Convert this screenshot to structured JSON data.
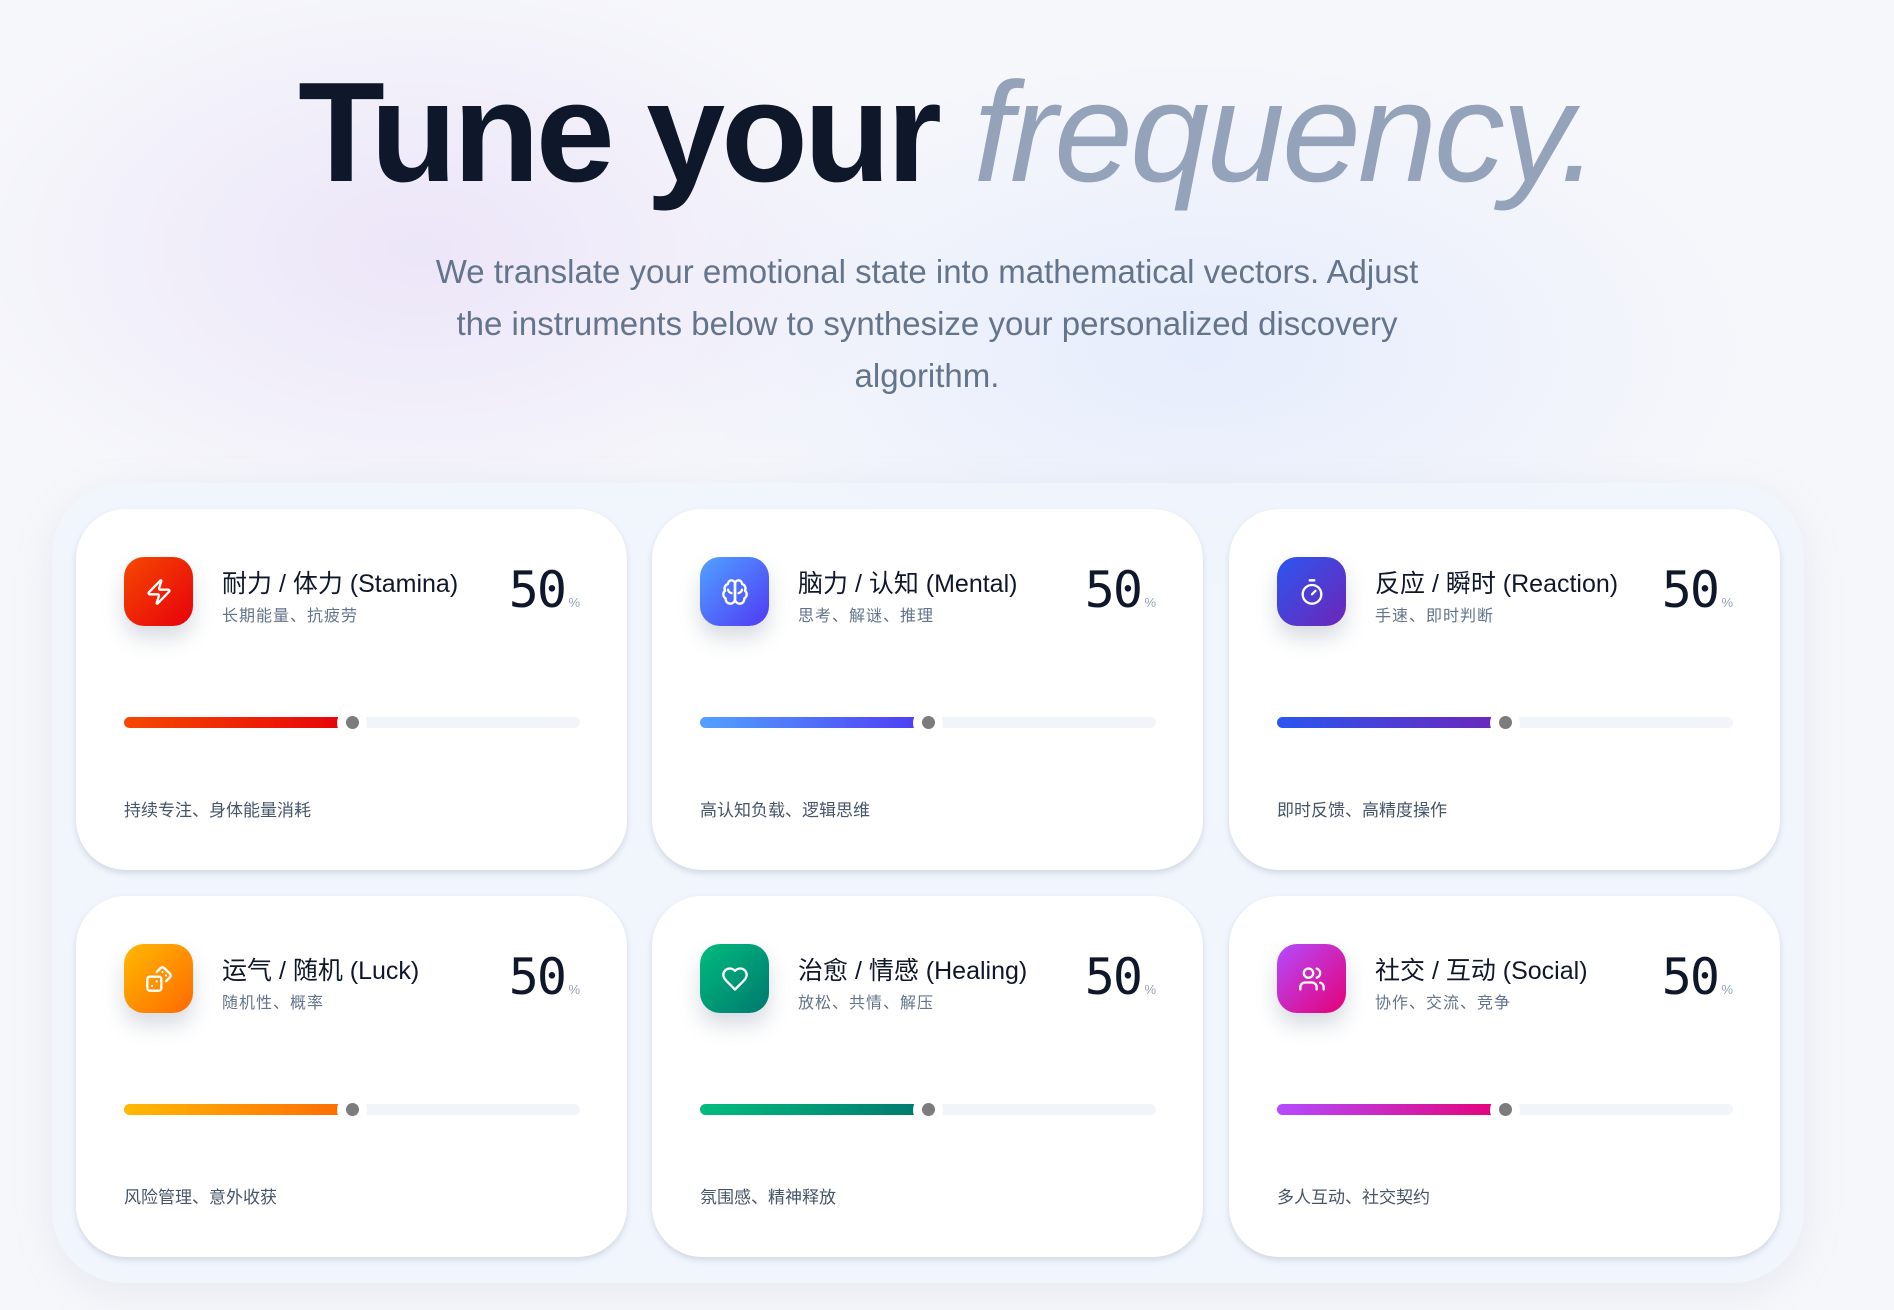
{
  "hero": {
    "title_main": "Tune your",
    "title_accent": "frequency.",
    "subtitle": "We translate your emotional state into mathematical vectors. Adjust the instruments below to synthesize your personalized discovery algorithm."
  },
  "cards": [
    {
      "title": "耐力 / 体力 (Stamina)",
      "subtitle": "长期能量、抗疲劳",
      "value": "50",
      "unit": "%",
      "level": 50,
      "description": "持续专注、身体能量消耗",
      "icon": "zap-icon",
      "colors": [
        "#f54900",
        "#e7000b"
      ]
    },
    {
      "title": "脑力 / 认知 (Mental)",
      "subtitle": "思考、解谜、推理",
      "value": "50",
      "unit": "%",
      "level": 50,
      "description": "高认知负载、逻辑思维",
      "icon": "brain-icon",
      "colors": [
        "#51a2ff",
        "#4f39f6"
      ]
    },
    {
      "title": "反应 / 瞬时 (Reaction)",
      "subtitle": "手速、即时判断",
      "value": "50",
      "unit": "%",
      "level": 50,
      "description": "即时反馈、高精度操作",
      "icon": "timer-icon",
      "colors": [
        "#2b56f0",
        "#6e25b8"
      ]
    },
    {
      "title": "运气 / 随机 (Luck)",
      "subtitle": "随机性、概率",
      "value": "50",
      "unit": "%",
      "level": 50,
      "description": "风险管理、意外收获",
      "icon": "dices-icon",
      "colors": [
        "#ffb900",
        "#ff6900"
      ]
    },
    {
      "title": "治愈 / 情感 (Healing)",
      "subtitle": "放松、共情、解压",
      "value": "50",
      "unit": "%",
      "level": 50,
      "description": "氛围感、精神释放",
      "icon": "heart-icon",
      "colors": [
        "#00bc7d",
        "#00786f"
      ]
    },
    {
      "title": "社交 / 互动 (Social)",
      "subtitle": "协作、交流、竞争",
      "value": "50",
      "unit": "%",
      "level": 50,
      "description": "多人互动、社交契约",
      "icon": "users-icon",
      "colors": [
        "#b44bff",
        "#e60076"
      ]
    }
  ]
}
